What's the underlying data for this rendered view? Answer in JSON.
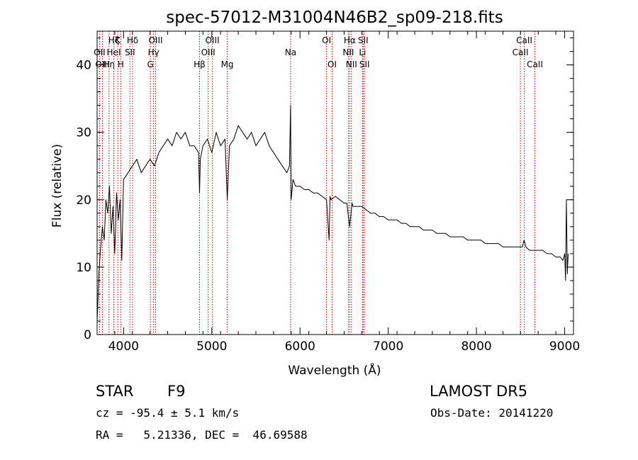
{
  "chart_data": {
    "type": "line",
    "title": "spec-57012-M31004N46B2_sp09-218.fits",
    "xlabel": "Wavelength (Å)",
    "ylabel": "Flux (relative)",
    "xlim": [
      3700,
      9100
    ],
    "ylim": [
      0,
      45
    ],
    "x_ticks": [
      4000,
      5000,
      6000,
      7000,
      8000,
      9000
    ],
    "y_ticks": [
      0,
      10,
      20,
      30,
      40
    ],
    "grid": false,
    "line_color": "#000000",
    "marker_color": "#cc0000",
    "series": [
      {
        "x": [
          3700,
          3720,
          3740,
          3760,
          3780,
          3800,
          3820,
          3840,
          3860,
          3880,
          3900,
          3920,
          3940,
          3960,
          3980,
          4000,
          4050,
          4100,
          4150,
          4200,
          4250,
          4300,
          4350,
          4400,
          4450,
          4500,
          4550,
          4600,
          4650,
          4700,
          4750,
          4800,
          4850,
          4861,
          4870,
          4900,
          4950,
          5000,
          5050,
          5100,
          5150,
          5175,
          5200,
          5250,
          5300,
          5350,
          5400,
          5450,
          5500,
          5550,
          5600,
          5650,
          5700,
          5750,
          5800,
          5850,
          5880,
          5893,
          5900,
          5920,
          5950,
          6000,
          6050,
          6100,
          6150,
          6200,
          6250,
          6300,
          6330,
          6340,
          6350,
          6400,
          6450,
          6500,
          6530,
          6563,
          6590,
          6600,
          6650,
          6700,
          6750,
          6800,
          6850,
          6900,
          6950,
          7000,
          7050,
          7100,
          7150,
          7200,
          7250,
          7300,
          7350,
          7400,
          7450,
          7500,
          7550,
          7600,
          7650,
          7700,
          7750,
          7800,
          7850,
          7900,
          7950,
          8000,
          8050,
          8100,
          8150,
          8200,
          8250,
          8300,
          8350,
          8400,
          8450,
          8500,
          8520,
          8540,
          8560,
          8600,
          8650,
          8700,
          8750,
          8800,
          8850,
          8900,
          8950,
          8980,
          9000,
          9010,
          9020,
          9030,
          9040
        ],
        "y": [
          2,
          9,
          13,
          16,
          14,
          20,
          18,
          22,
          15,
          19,
          12,
          21,
          17,
          20,
          11,
          23,
          24,
          25,
          26,
          24,
          25,
          26,
          25,
          27,
          28,
          29,
          28,
          30,
          29,
          30,
          28,
          28,
          27,
          21,
          26,
          28,
          29,
          27,
          30,
          28,
          29,
          20,
          28,
          29,
          31,
          30,
          29,
          30,
          28,
          29,
          30,
          28,
          27,
          26,
          25,
          24,
          25,
          34,
          20,
          23,
          22,
          22,
          21.5,
          21.5,
          21,
          21,
          20.5,
          20,
          14,
          20.5,
          20,
          20.5,
          20,
          19.5,
          19.5,
          16,
          19.5,
          19,
          19,
          19,
          18.5,
          18,
          18,
          17.5,
          17.5,
          17,
          17,
          17,
          16.5,
          16.5,
          16,
          16,
          16,
          15.5,
          15.5,
          15.5,
          15,
          15,
          15,
          14.5,
          14.5,
          14.5,
          14.5,
          14,
          14,
          14,
          14,
          13.5,
          13.5,
          13.5,
          13.5,
          13,
          13,
          13,
          13,
          13,
          13,
          14,
          13,
          12.5,
          12.5,
          12.5,
          12.5,
          12,
          12,
          11.5,
          11.5,
          11,
          12,
          8,
          20,
          9,
          12
        ]
      }
    ],
    "lines": [
      {
        "x": 3727,
        "label": "OII",
        "row": 2
      },
      {
        "x": 3760,
        "label": "OIII",
        "row": 3
      },
      {
        "x": 3835,
        "label": "Hη",
        "row": 3
      },
      {
        "x": 3889,
        "label": "Hζ",
        "row": 1
      },
      {
        "x": 3889,
        "label": "HeI",
        "row": 2
      },
      {
        "x": 3934,
        "label": "K",
        "row": 1
      },
      {
        "x": 3968,
        "label": "H",
        "row": 3
      },
      {
        "x": 4072,
        "label": "SII",
        "row": 2
      },
      {
        "x": 4102,
        "label": "Hδ",
        "row": 1
      },
      {
        "x": 4304,
        "label": "G",
        "row": 3
      },
      {
        "x": 4340,
        "label": "Hγ",
        "row": 2
      },
      {
        "x": 4363,
        "label": "OIII",
        "row": 1
      },
      {
        "x": 4861,
        "label": "Hβ",
        "row": 3
      },
      {
        "x": 4959,
        "label": "OIII",
        "row": 2
      },
      {
        "x": 5007,
        "label": "OIII",
        "row": 1
      },
      {
        "x": 5175,
        "label": "Mg",
        "row": 3
      },
      {
        "x": 5893,
        "label": "Na",
        "row": 2
      },
      {
        "x": 6300,
        "label": "OI",
        "row": 1
      },
      {
        "x": 6364,
        "label": "OI",
        "row": 3
      },
      {
        "x": 6548,
        "label": "NII",
        "row": 2
      },
      {
        "x": 6563,
        "label": "Hα",
        "row": 1
      },
      {
        "x": 6583,
        "label": "NII",
        "row": 3
      },
      {
        "x": 6708,
        "label": "Li",
        "row": 2
      },
      {
        "x": 6716,
        "label": "SII",
        "row": 1
      },
      {
        "x": 6731,
        "label": "SII",
        "row": 3
      },
      {
        "x": 8498,
        "label": "CaII",
        "row": 2
      },
      {
        "x": 8542,
        "label": "CaII",
        "row": 1
      },
      {
        "x": 8662,
        "label": "CaII",
        "row": 3
      }
    ]
  },
  "info": {
    "class": "STAR",
    "subclass": "F9",
    "survey": "LAMOST DR5",
    "cz": "cz = -95.4 ± 5.1 km/s",
    "obsdate": "Obs-Date: 20141220",
    "coords": "RA =   5.21336, DEC =  46.69588"
  }
}
